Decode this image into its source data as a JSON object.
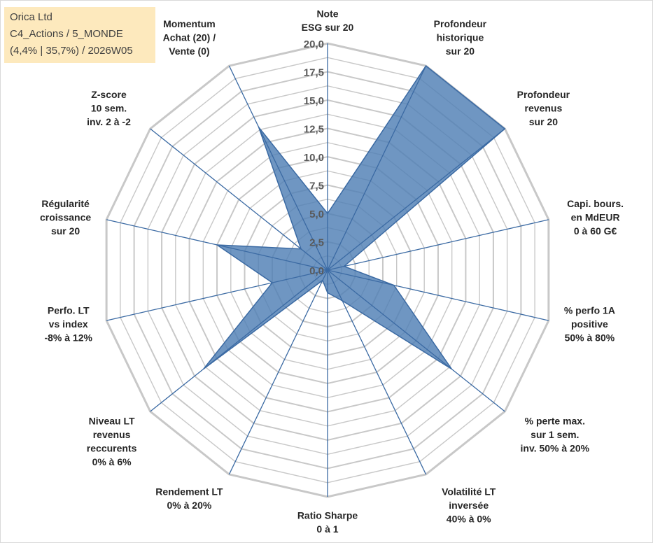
{
  "info": {
    "line1": "Orica Ltd",
    "line2": "C4_Actions / 5_MONDE",
    "line3": "(4,4% | 35,7%) / 2026W05"
  },
  "chart_data": {
    "type": "radar",
    "title": "",
    "rmin": 0,
    "rmax": 20,
    "ticks": [
      "0,0",
      "2,5",
      "5,0",
      "7,5",
      "10,0",
      "12,5",
      "15,0",
      "17,5",
      "20,0"
    ],
    "tick_values": [
      0,
      2.5,
      5,
      7.5,
      10,
      12.5,
      15,
      17.5,
      20
    ],
    "grid": true,
    "axes": [
      {
        "lines": [
          "Note",
          "ESG sur 20"
        ],
        "value": 5
      },
      {
        "lines": [
          "Profondeur",
          "historique",
          "sur 20"
        ],
        "value": 20
      },
      {
        "lines": [
          "Profondeur",
          "revenus",
          "sur 20"
        ],
        "value": 20
      },
      {
        "lines": [
          "Capi. bours.",
          "en MdEUR",
          "0 à 60 G€"
        ],
        "value": 1.5
      },
      {
        "lines": [
          "% perfo 1A",
          "positive",
          "50% à 80%"
        ],
        "value": 6
      },
      {
        "lines": [
          "% perte max.",
          "sur 1 sem.",
          "inv. 50% à 20%"
        ],
        "value": 14
      },
      {
        "lines": [
          "Volatilité LT",
          "inversée",
          "40% à 0%"
        ],
        "value": 3
      },
      {
        "lines": [
          "Ratio Sharpe",
          "0 à 1"
        ],
        "value": 2
      },
      {
        "lines": [
          "Rendement LT",
          "0% à 20%"
        ],
        "value": 1
      },
      {
        "lines": [
          "Niveau LT",
          "revenus",
          "reccurents",
          "0% à 6%"
        ],
        "value": 14
      },
      {
        "lines": [
          "Perfo. LT",
          "vs index",
          "-8% à 12%"
        ],
        "value": 5
      },
      {
        "lines": [
          "Régularité",
          "croissance",
          "sur 20"
        ],
        "value": 10
      },
      {
        "lines": [
          "Z-score",
          "10 sem.",
          "inv. 2 à -2"
        ],
        "value": 3
      },
      {
        "lines": [
          "Momentum",
          "Achat (20) /",
          "Vente (0)"
        ],
        "value": 14
      }
    ],
    "series": [
      {
        "fill": "#4f7fb5",
        "stroke": "#3b6aa3"
      }
    ],
    "colors": {
      "grid": "#c8c8c8",
      "spoke": "#3b6aa3"
    }
  }
}
